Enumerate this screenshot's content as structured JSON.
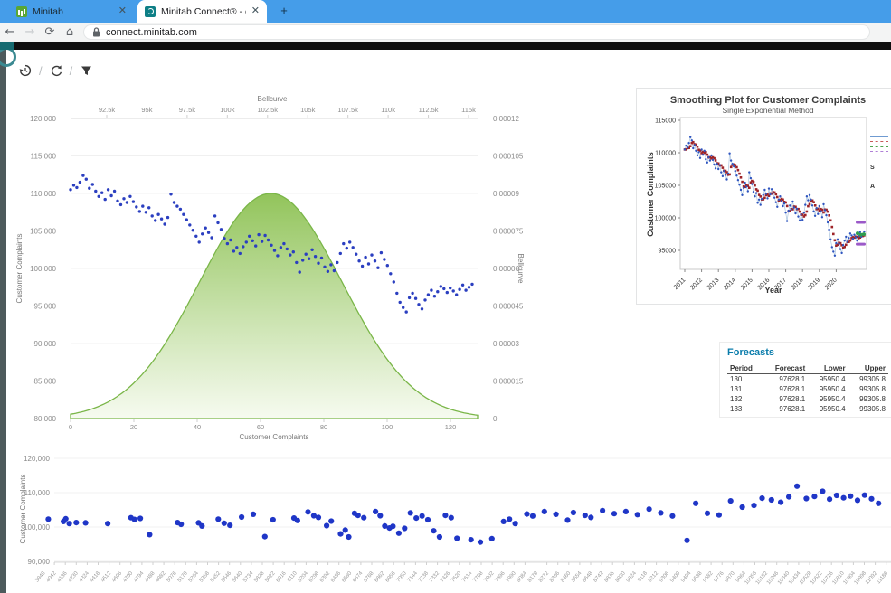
{
  "browser": {
    "tabs": [
      {
        "label": "Minitab",
        "active": false
      },
      {
        "label": "Minitab Connect® - connect.min",
        "active": true
      }
    ],
    "url": "connect.minitab.com",
    "tab_bar_color": "#459de9"
  },
  "page": {
    "toolbar_icons": [
      "history",
      "refresh",
      "filter"
    ],
    "accent_teal": "#156a70"
  },
  "forecasts": {
    "title": "Forecasts",
    "title_color": "#0a7cab",
    "headers": [
      "Period",
      "Forecast",
      "Lower",
      "Upper"
    ],
    "rows": [
      [
        "130",
        "97628.1",
        "95950.4",
        "99305.8"
      ],
      [
        "131",
        "97628.1",
        "95950.4",
        "99305.8"
      ],
      [
        "132",
        "97628.1",
        "95950.4",
        "99305.8"
      ],
      [
        "133",
        "97628.1",
        "95950.4",
        "99305.8"
      ]
    ]
  },
  "chart_data": [
    {
      "id": "bellcurve_overlay",
      "type": "scatter",
      "xlabel": "Customer Complaints",
      "ylabel_left": "Customer Complaints",
      "ylabel_right": "Bellcurve",
      "top_axis_title": "Bellcurve",
      "top_axis_ticks": [
        "92.5k",
        "95k",
        "97.5k",
        "100k",
        "102.5k",
        "105k",
        "107.5k",
        "110k",
        "112.5k",
        "115k"
      ],
      "left_ticks": [
        "120,000",
        "115,000",
        "110,000",
        "105,000",
        "100,000",
        "95,000",
        "90,000",
        "85,000",
        "80,000"
      ],
      "right_ticks": [
        "0.00012",
        "0.000105",
        "0.00009",
        "0.000075",
        "0.00006",
        "0.000045",
        "0.00003",
        "0.000015",
        "0"
      ],
      "bottom_ticks": [
        "0",
        "20",
        "40",
        "60",
        "80",
        "100",
        "120"
      ],
      "xlim": [
        0,
        128
      ],
      "ylim_left": [
        80000,
        120000
      ],
      "ylim_right": [
        0,
        0.00012
      ],
      "top_axis_range": [
        90000,
        117500
      ],
      "bell": {
        "mean": 102700,
        "sigma": 4430,
        "peak": 9e-05,
        "color_top": "#8cc152",
        "color_bottom": "#f5faee",
        "stroke": "#7ab648"
      },
      "point_color": "#2b3fc0",
      "points_y": [
        110500,
        111100,
        110800,
        111500,
        112400,
        111900,
        110700,
        111200,
        110300,
        109600,
        110100,
        109200,
        110500,
        109700,
        110300,
        109000,
        108500,
        109300,
        108800,
        109600,
        108900,
        108200,
        107600,
        108300,
        107500,
        108100,
        107000,
        106400,
        107200,
        106600,
        105900,
        106800,
        109900,
        108800,
        108300,
        107900,
        107200,
        106500,
        105800,
        105100,
        104300,
        103500,
        104600,
        105400,
        104800,
        104100,
        107000,
        106100,
        105200,
        104000,
        103300,
        103800,
        102300,
        102800,
        102000,
        102900,
        103500,
        104300,
        103700,
        103000,
        104500,
        103600,
        104400,
        103800,
        103100,
        102400,
        101700,
        102800,
        103300,
        102600,
        101800,
        102200,
        100800,
        99500,
        101100,
        101900,
        101300,
        102500,
        101600,
        100700,
        101400,
        100200,
        99600,
        100500,
        99700,
        100800,
        102000,
        103300,
        102700,
        103500,
        102800,
        101900,
        101000,
        100300,
        101500,
        100600,
        101800,
        101000,
        100100,
        102100,
        101200,
        100400,
        99300,
        98200,
        96700,
        95500,
        94800,
        94200,
        96100,
        96700,
        96000,
        95200,
        94600,
        95800,
        96500,
        97100,
        96300,
        96900,
        97600,
        97300,
        96800,
        97400,
        97000,
        96500,
        97200,
        97800,
        97100,
        97500,
        97900
      ]
    },
    {
      "id": "smoothing_plot",
      "type": "line",
      "title": "Smoothing Plot for Customer Complaints",
      "subtitle": "Single Exponential Method",
      "xlabel": "Year",
      "ylabel": "Customer Complaints",
      "x_ticks": [
        "2011",
        "2012",
        "2013",
        "2014",
        "2015",
        "2016",
        "2017",
        "2018",
        "2019",
        "2020"
      ],
      "y_ticks": [
        "115000",
        "110000",
        "105000",
        "100000",
        "95000"
      ],
      "ylim": [
        93000,
        116500
      ],
      "series_source": "bellcurve_overlay.points_y",
      "fit_alpha_render": 0.35,
      "forecast": {
        "periods": [
          130,
          131,
          132,
          133
        ],
        "value": 97628.1,
        "lower": 95950.4,
        "upper": 99305.8
      },
      "colors": {
        "actual": "#2f55c0",
        "fits": "#9e2428",
        "forecasts": "#2e9e4f",
        "pi": "#9b59c8",
        "connector": "#aac4de"
      },
      "legend_partial": [
        "S",
        "A"
      ],
      "legend_swatch_colors": [
        "#6f9bd1",
        "#c85a5a",
        "#4ea64e",
        "#b07fd6"
      ]
    },
    {
      "id": "bottom_scatter",
      "type": "scatter",
      "ylabel": "Customer Complaints",
      "y_ticks": [
        "120,000",
        "110,000",
        "100,000",
        "90,000"
      ],
      "ylim": [
        90000,
        120000
      ],
      "point_color": "#1f36c7",
      "x_tick_labels": [
        3948,
        4042,
        4136,
        4230,
        4324,
        4418,
        4512,
        4606,
        4700,
        4794,
        4888,
        4982,
        5076,
        5170,
        5264,
        5358,
        5452,
        5546,
        5640,
        5734,
        5828,
        5922,
        6016,
        6110,
        6204,
        6298,
        6392,
        6486,
        6580,
        6674,
        6768,
        6862,
        6956,
        7050,
        7144,
        7238,
        7332,
        7426,
        7520,
        7614,
        7708,
        7802,
        7896,
        7990,
        8084,
        8178,
        8272,
        8366,
        8460,
        8554,
        8648,
        8742,
        8836,
        8930,
        9024,
        9118,
        9212,
        9306,
        9400,
        9494,
        9588,
        9682,
        9776,
        9870,
        9964,
        10058,
        10152,
        10246,
        10340,
        10434,
        10528,
        10622,
        10716,
        10810,
        10904,
        10998,
        11092,
        11186
      ],
      "points": [
        [
          3990,
          102300
        ],
        [
          4120,
          101600
        ],
        [
          4140,
          102400
        ],
        [
          4170,
          101000
        ],
        [
          4230,
          101300
        ],
        [
          4310,
          101200
        ],
        [
          4500,
          101000
        ],
        [
          4700,
          102700
        ],
        [
          4730,
          102200
        ],
        [
          4780,
          102500
        ],
        [
          4860,
          97800
        ],
        [
          5100,
          101300
        ],
        [
          5130,
          100800
        ],
        [
          5280,
          101200
        ],
        [
          5310,
          100300
        ],
        [
          5450,
          102300
        ],
        [
          5500,
          101100
        ],
        [
          5550,
          100500
        ],
        [
          5650,
          102900
        ],
        [
          5750,
          103700
        ],
        [
          5850,
          97200
        ],
        [
          5920,
          102100
        ],
        [
          6100,
          102600
        ],
        [
          6130,
          101900
        ],
        [
          6220,
          104400
        ],
        [
          6270,
          103300
        ],
        [
          6310,
          102800
        ],
        [
          6380,
          100400
        ],
        [
          6420,
          101700
        ],
        [
          6500,
          98000
        ],
        [
          6540,
          99100
        ],
        [
          6570,
          97100
        ],
        [
          6620,
          104000
        ],
        [
          6650,
          103400
        ],
        [
          6700,
          102700
        ],
        [
          6800,
          104500
        ],
        [
          6840,
          103300
        ],
        [
          6880,
          100300
        ],
        [
          6920,
          99700
        ],
        [
          6950,
          100200
        ],
        [
          7000,
          98200
        ],
        [
          7050,
          99600
        ],
        [
          7100,
          104100
        ],
        [
          7150,
          102600
        ],
        [
          7200,
          103200
        ],
        [
          7250,
          102100
        ],
        [
          7300,
          98900
        ],
        [
          7350,
          97100
        ],
        [
          7400,
          103400
        ],
        [
          7450,
          102700
        ],
        [
          7500,
          96700
        ],
        [
          7620,
          96300
        ],
        [
          7700,
          95600
        ],
        [
          7800,
          96600
        ],
        [
          7900,
          101600
        ],
        [
          7950,
          102300
        ],
        [
          8000,
          101000
        ],
        [
          8100,
          103800
        ],
        [
          8150,
          103200
        ],
        [
          8250,
          104500
        ],
        [
          8350,
          103700
        ],
        [
          8450,
          102000
        ],
        [
          8500,
          104200
        ],
        [
          8600,
          103400
        ],
        [
          8650,
          102800
        ],
        [
          8750,
          104800
        ],
        [
          8850,
          103900
        ],
        [
          8950,
          104500
        ],
        [
          9050,
          103600
        ],
        [
          9150,
          105200
        ],
        [
          9250,
          104100
        ],
        [
          9350,
          103200
        ],
        [
          9475,
          96100
        ],
        [
          9550,
          106900
        ],
        [
          9650,
          104000
        ],
        [
          9750,
          103500
        ],
        [
          9850,
          107600
        ],
        [
          9950,
          105800
        ],
        [
          10050,
          106300
        ],
        [
          10120,
          108400
        ],
        [
          10200,
          107900
        ],
        [
          10280,
          107200
        ],
        [
          10350,
          108800
        ],
        [
          10420,
          111900
        ],
        [
          10500,
          108300
        ],
        [
          10570,
          108900
        ],
        [
          10640,
          110400
        ],
        [
          10700,
          108100
        ],
        [
          10760,
          109200
        ],
        [
          10820,
          108500
        ],
        [
          10880,
          109000
        ],
        [
          10940,
          107800
        ],
        [
          11000,
          109300
        ],
        [
          11060,
          108200
        ],
        [
          11120,
          106900
        ]
      ]
    }
  ]
}
